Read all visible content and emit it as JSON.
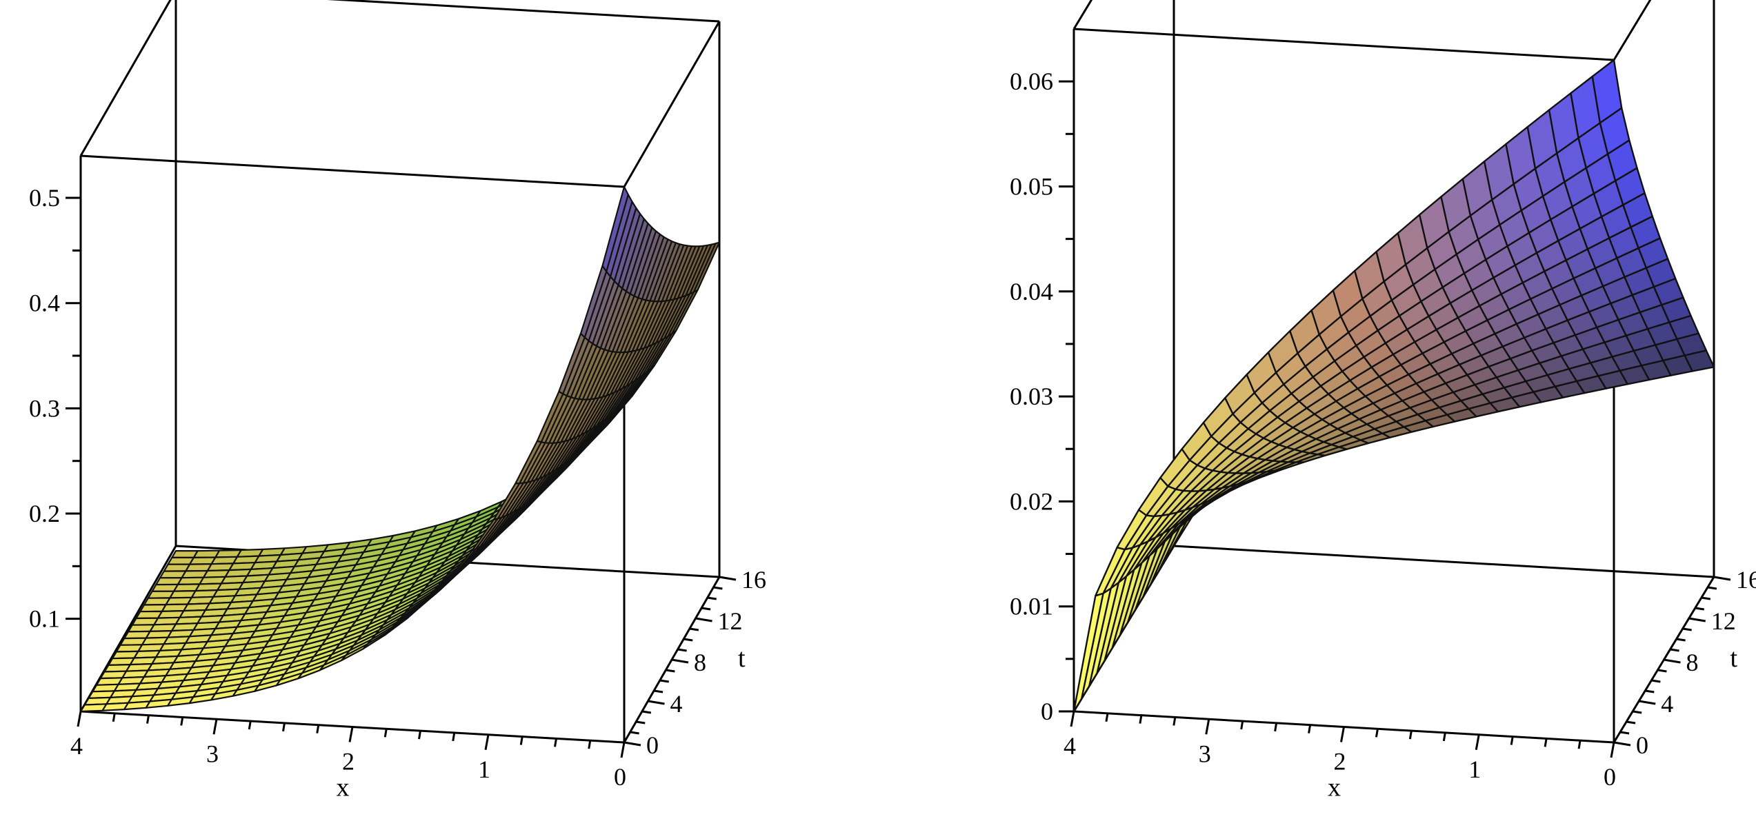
{
  "chart_data": [
    {
      "type": "surface3d",
      "x": {
        "label": "x",
        "range": [
          0,
          4
        ],
        "ticks": [
          "4",
          "3",
          "2",
          "1",
          "0"
        ]
      },
      "t": {
        "label": "t",
        "range": [
          0,
          16
        ],
        "ticks": [
          "0",
          "4",
          "8",
          "12",
          "16"
        ]
      },
      "z": {
        "label": "",
        "range": [
          0.012,
          0.54
        ],
        "ticks": [
          "0.1",
          "0.2",
          "0.3",
          "0.4",
          "0.5"
        ]
      },
      "mesh": {
        "x_lines": 25,
        "t_lines": 24
      },
      "surface": {
        "form": "exp(-x/A)/(1+t/B)",
        "at_origin": 0.54,
        "at_x0_t16": 0.33,
        "at_x4": 0.012
      },
      "colors": {
        "low": "#fff066",
        "mid": "#8a7448",
        "high": "#554cc8",
        "edge_near": "#4cf24c"
      }
    },
    {
      "type": "surface3d",
      "x": {
        "label": "x",
        "range": [
          0,
          4
        ],
        "ticks": [
          "4",
          "3",
          "2",
          "1",
          "0"
        ]
      },
      "t": {
        "label": "t",
        "range": [
          0,
          16
        ],
        "ticks": [
          "0",
          "4",
          "8",
          "12",
          "16"
        ]
      },
      "z": {
        "label": "",
        "range": [
          0,
          0.065
        ],
        "ticks": [
          "0",
          "0.01",
          "0.02",
          "0.03",
          "0.04",
          "0.05",
          "0.06"
        ]
      },
      "mesh": {
        "x_lines": 25,
        "t_lines": 13
      },
      "surface": {
        "form": "x-t interpolated",
        "at_x0_t0": 0.065,
        "at_x0_t16": 0.02,
        "at_x4": 0.0
      },
      "colors": {
        "low": "#ffff66",
        "mid": "#c08a70",
        "high": "#5050ff",
        "dark": "#2e2e2e"
      }
    }
  ]
}
